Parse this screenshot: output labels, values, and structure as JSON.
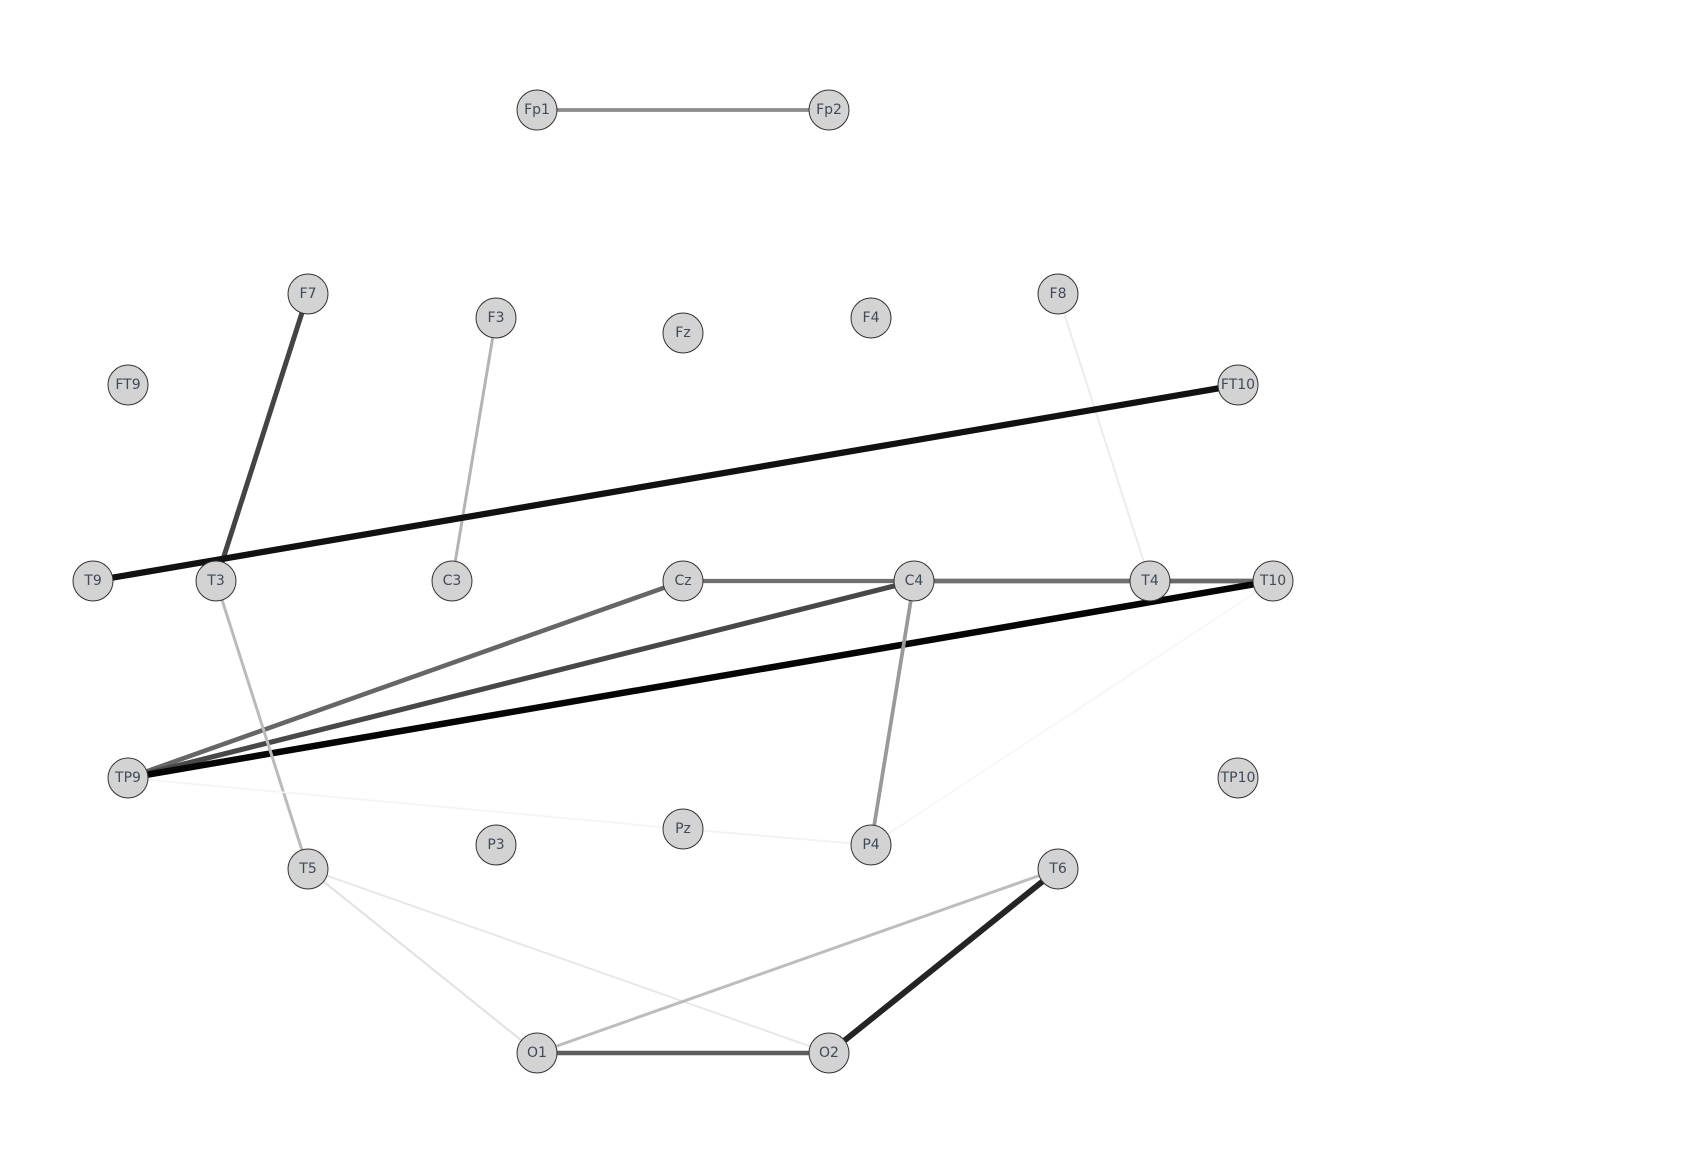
{
  "diagram": {
    "nodes": [
      {
        "id": "Fp1",
        "label": "Fp1"
      },
      {
        "id": "Fp2",
        "label": "Fp2"
      },
      {
        "id": "F7",
        "label": "F7"
      },
      {
        "id": "F3",
        "label": "F3"
      },
      {
        "id": "Fz",
        "label": "Fz"
      },
      {
        "id": "F4",
        "label": "F4"
      },
      {
        "id": "F8",
        "label": "F8"
      },
      {
        "id": "FT9",
        "label": "FT9"
      },
      {
        "id": "FT10",
        "label": "FT10"
      },
      {
        "id": "T9",
        "label": "T9"
      },
      {
        "id": "T3",
        "label": "T3"
      },
      {
        "id": "C3",
        "label": "C3"
      },
      {
        "id": "Cz",
        "label": "Cz"
      },
      {
        "id": "C4",
        "label": "C4"
      },
      {
        "id": "T4",
        "label": "T4"
      },
      {
        "id": "T10",
        "label": "T10"
      },
      {
        "id": "TP9",
        "label": "TP9"
      },
      {
        "id": "TP10",
        "label": "TP10"
      },
      {
        "id": "P3",
        "label": "P3"
      },
      {
        "id": "Pz",
        "label": "Pz"
      },
      {
        "id": "P4",
        "label": "P4"
      },
      {
        "id": "T5",
        "label": "T5"
      },
      {
        "id": "T6",
        "label": "T6"
      },
      {
        "id": "O1",
        "label": "O1"
      },
      {
        "id": "O2",
        "label": "O2"
      }
    ],
    "edges": [
      {
        "from": "Fp1",
        "to": "Fp2",
        "color": "#8c8c8c",
        "strength": 0.45
      },
      {
        "from": "F7",
        "to": "T3",
        "color": "#444444",
        "strength": 0.7
      },
      {
        "from": "F3",
        "to": "C3",
        "color": "#b4b4b4",
        "strength": 0.3
      },
      {
        "from": "F8",
        "to": "T4",
        "color": "#ebebeb",
        "strength": 0.08
      },
      {
        "from": "T9",
        "to": "FT10",
        "color": "#111111",
        "strength": 0.95
      },
      {
        "from": "Cz",
        "to": "C4",
        "color": "#6e6e6e",
        "strength": 0.55
      },
      {
        "from": "C4",
        "to": "T4",
        "color": "#707070",
        "strength": 0.65
      },
      {
        "from": "T4",
        "to": "T10",
        "color": "#6a6a6a",
        "strength": 0.65
      },
      {
        "from": "TP9",
        "to": "Cz",
        "color": "#666666",
        "strength": 0.62
      },
      {
        "from": "TP9",
        "to": "C4",
        "color": "#484848",
        "strength": 0.72
      },
      {
        "from": "TP9",
        "to": "T10",
        "color": "#050505",
        "strength": 1.0
      },
      {
        "from": "C4",
        "to": "P4",
        "color": "#999999",
        "strength": 0.45
      },
      {
        "from": "T3",
        "to": "T5",
        "color": "#bbbbbb",
        "strength": 0.3
      },
      {
        "from": "TP9",
        "to": "Pz",
        "color": "#f4f4f4",
        "strength": 0.05
      },
      {
        "from": "Pz",
        "to": "P4",
        "color": "#f2f2f2",
        "strength": 0.05
      },
      {
        "from": "P4",
        "to": "T10",
        "color": "#f6f6f6",
        "strength": 0.04
      },
      {
        "from": "T5",
        "to": "O1",
        "color": "#e2e2e2",
        "strength": 0.12
      },
      {
        "from": "T5",
        "to": "O2",
        "color": "#e8e8e8",
        "strength": 0.1
      },
      {
        "from": "O1",
        "to": "T6",
        "color": "#bdbdbd",
        "strength": 0.3
      },
      {
        "from": "T6",
        "to": "O2",
        "color": "#242424",
        "strength": 0.88
      },
      {
        "from": "O1",
        "to": "O2",
        "color": "#5e5e5e",
        "strength": 0.6
      }
    ]
  }
}
